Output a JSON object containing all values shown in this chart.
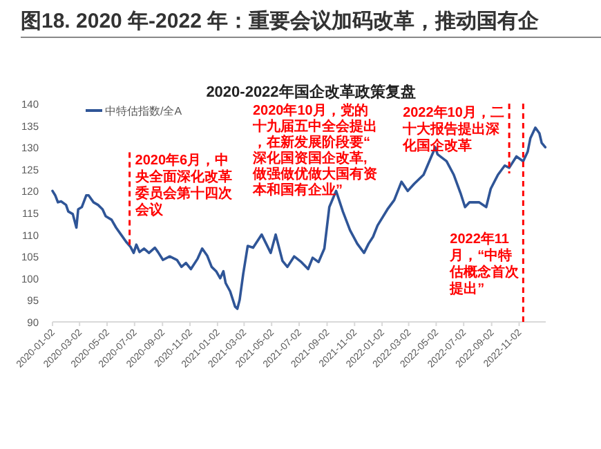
{
  "chart_data": {
    "type": "line",
    "title": "图18. 2020 年-2022 年：重要会议加码改革，推动国有企",
    "subtitle": "2020-2022年国企改革政策复盘",
    "series": [
      {
        "name": "中特估指数/全A",
        "color": "#2f5597",
        "x": [
          "2020-01-02",
          "2020-01-08",
          "2020-01-14",
          "2020-01-21",
          "2020-02-01",
          "2020-02-06",
          "2020-02-16",
          "2020-02-24",
          "2020-02-28",
          "2020-03-07",
          "2020-03-17",
          "2020-03-22",
          "2020-04-02",
          "2020-04-12",
          "2020-04-22",
          "2020-04-29",
          "2020-05-12",
          "2020-05-22",
          "2020-06-02",
          "2020-06-13",
          "2020-06-23",
          "2020-06-30",
          "2020-07-06",
          "2020-07-13",
          "2020-07-23",
          "2020-08-03",
          "2020-08-16",
          "2020-08-23",
          "2020-09-03",
          "2020-09-18",
          "2020-10-04",
          "2020-10-14",
          "2020-10-24",
          "2020-11-04",
          "2020-11-19",
          "2020-11-29",
          "2020-12-10",
          "2020-12-20",
          "2020-12-30",
          "2021-01-08",
          "2021-01-15",
          "2021-01-20",
          "2021-01-30",
          "2021-02-10",
          "2021-02-15",
          "2021-02-20",
          "2021-02-28",
          "2021-03-10",
          "2021-03-22",
          "2021-04-10",
          "2021-04-30",
          "2021-05-11",
          "2021-05-26",
          "2021-06-06",
          "2021-06-21",
          "2021-07-07",
          "2021-07-22",
          "2021-08-01",
          "2021-08-14",
          "2021-08-27",
          "2021-09-07",
          "2021-09-22",
          "2021-10-07",
          "2021-10-23",
          "2021-11-08",
          "2021-11-23",
          "2021-12-03",
          "2021-12-13",
          "2021-12-23",
          "2022-01-14",
          "2022-01-29",
          "2022-02-14",
          "2022-02-28",
          "2022-03-14",
          "2022-04-04",
          "2022-04-30",
          "2022-05-05",
          "2022-05-25",
          "2022-06-10",
          "2022-06-25",
          "2022-07-05",
          "2022-07-15",
          "2022-08-05",
          "2022-08-21",
          "2022-08-31",
          "2022-09-16",
          "2022-10-01",
          "2022-10-11",
          "2022-10-27",
          "2022-11-11",
          "2022-11-21",
          "2022-11-27",
          "2022-12-08",
          "2022-12-17",
          "2022-12-22",
          "2022-12-30"
        ],
        "values": [
          120,
          119,
          117.4,
          117.6,
          116.8,
          115.3,
          114.7,
          111.6,
          115.8,
          116.3,
          119,
          119,
          117.4,
          116.8,
          115.8,
          114.2,
          113.4,
          111.6,
          110,
          108.4,
          107.2,
          105.8,
          107.7,
          106,
          106.8,
          105.8,
          107,
          106,
          104.2,
          105,
          104.2,
          102.6,
          103.5,
          102.1,
          104.5,
          106.8,
          105.2,
          102.6,
          101.6,
          100,
          101.6,
          98.9,
          97,
          93.5,
          93,
          95,
          101,
          107.4,
          107,
          110,
          105.8,
          110,
          104,
          102.6,
          105,
          103.7,
          102.1,
          104.7,
          103.7,
          106.8,
          116.3,
          120,
          115.3,
          111,
          107.9,
          105.8,
          107.9,
          109.5,
          112.1,
          115.8,
          117.9,
          122.1,
          120,
          121.6,
          123.7,
          130,
          128.4,
          126.8,
          123.7,
          119.5,
          116.3,
          117.4,
          117.4,
          116.3,
          120.5,
          123.7,
          125.8,
          125.3,
          127.9,
          126.8,
          129,
          132.1,
          134.5,
          133.2,
          131,
          130
        ]
      }
    ],
    "xlim": [
      "2020-01-02",
      "2022-12-31"
    ],
    "xticks": [
      "2020-01-02",
      "2020-03-02",
      "2020-05-02",
      "2020-07-02",
      "2020-09-02",
      "2020-11-02",
      "2021-01-02",
      "2021-03-02",
      "2021-05-02",
      "2021-07-02",
      "2021-09-02",
      "2021-11-02",
      "2022-01-02",
      "2022-03-02",
      "2022-05-02",
      "2022-07-02",
      "2022-09-02",
      "2022-11-02"
    ],
    "ylim": [
      90,
      140
    ],
    "yticks": [
      90,
      95,
      100,
      105,
      110,
      115,
      120,
      125,
      130,
      135,
      140
    ],
    "legend": "top left",
    "grid": false,
    "ref_lines": [
      {
        "axis": "x",
        "value": "2020-06-21",
        "label": "2020年6月，中央全面深化改革委员会第十四次会议",
        "color": "#ff0000",
        "line_style": "dashed"
      },
      {
        "axis": "x",
        "value": "2022-10-11",
        "label": "2022年10月，二十大报告提出深化国企改革",
        "color": "#ff0000",
        "line_style": "dashed"
      },
      {
        "axis": "x",
        "value": "2022-11-11",
        "label": "2022年11月，“中特估概念首次提出”",
        "color": "#ff0000",
        "line_style": "dashed"
      }
    ],
    "annotations": [
      "2020年10月，党的十九届五中全会提出，在新发展阶段要“深化国资国企改革,做强做优做大国有资本和国有企业”"
    ]
  }
}
